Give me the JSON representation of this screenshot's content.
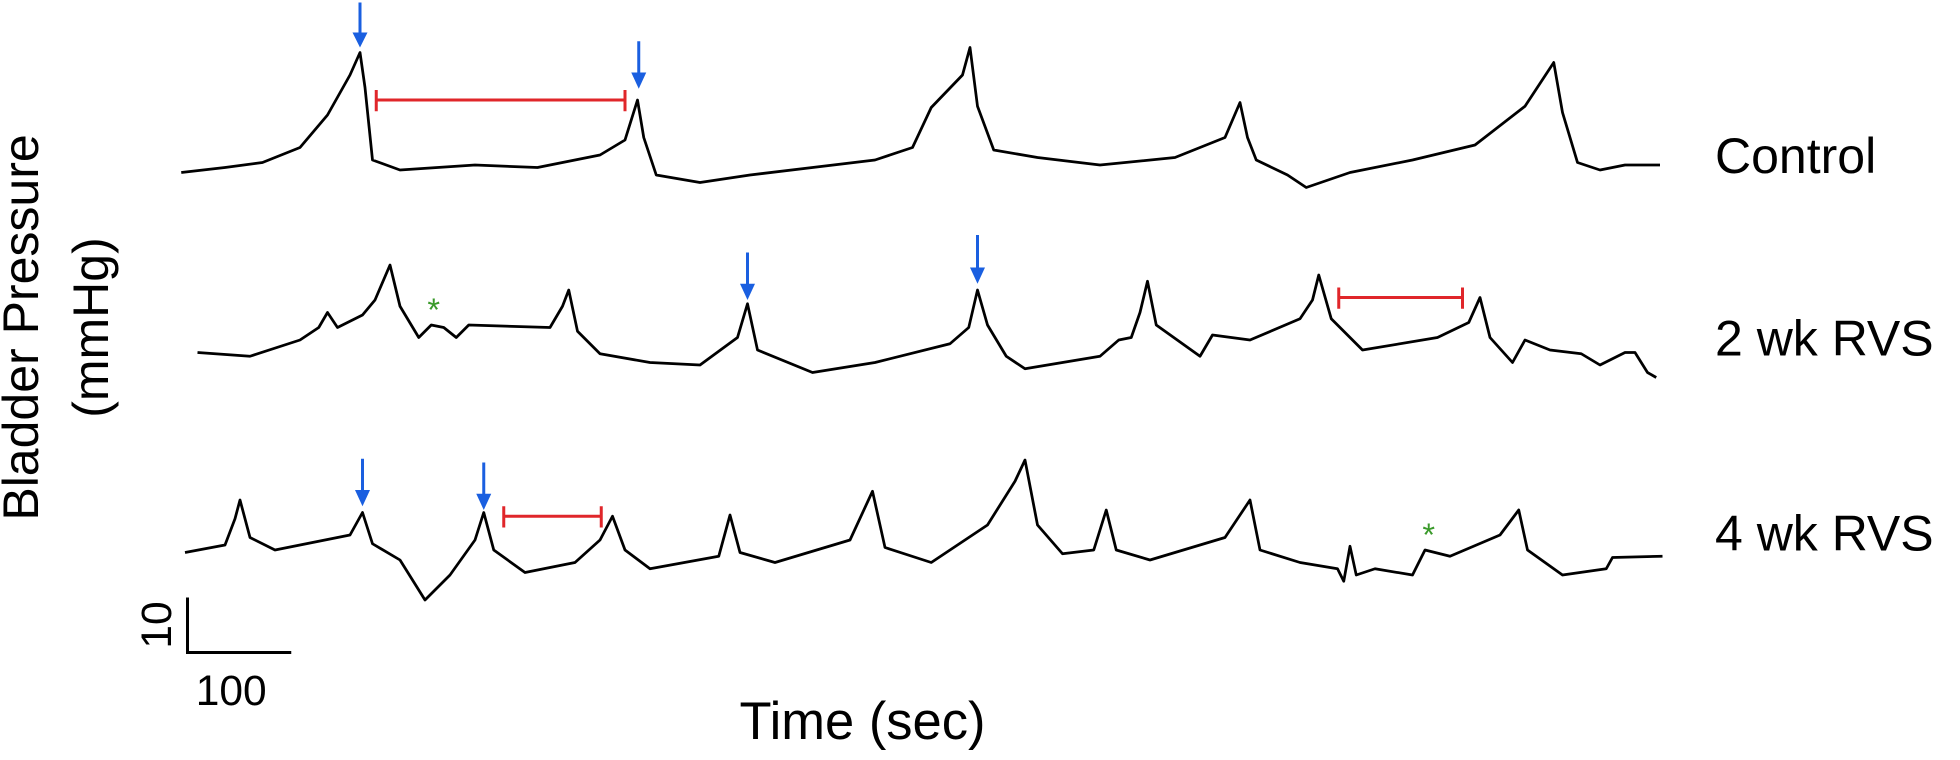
{
  "y_axis_label": [
    "Bladder Pressure",
    "(mmHg)"
  ],
  "x_axis_label": "Time (sec)",
  "traces": [
    {
      "label": "Control"
    },
    {
      "label": "2 wk RVS"
    },
    {
      "label": "4 wk RVS"
    }
  ],
  "annotation_symbol": "*",
  "scale_bar": {
    "vertical": "10",
    "horizontal": "100"
  }
}
